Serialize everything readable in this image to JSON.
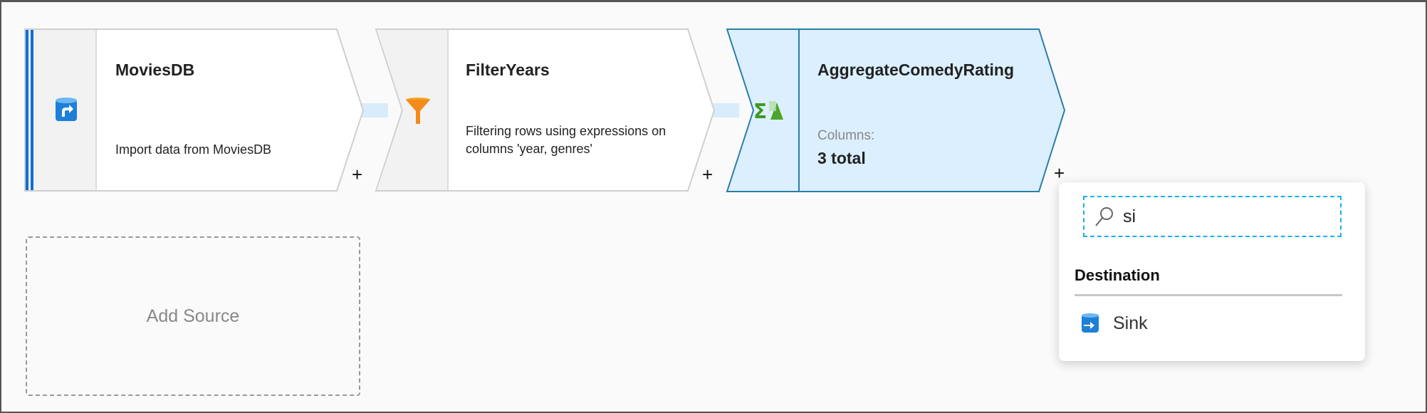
{
  "nodes": [
    {
      "title": "MoviesDB",
      "description": "Import data from MoviesDB",
      "icon": "source-database-icon"
    },
    {
      "title": "FilterYears",
      "description": "Filtering rows using expressions on columns 'year, genres'",
      "icon": "filter-funnel-icon"
    },
    {
      "title": "AggregateComedyRating",
      "columns_label": "Columns:",
      "columns_value": "3 total",
      "icon": "aggregate-icon",
      "selected": true
    }
  ],
  "add_plus": "+",
  "add_source": "Add Source",
  "popup": {
    "search_value": "si",
    "section": "Destination",
    "items": [
      {
        "label": "Sink",
        "icon": "sink-icon"
      }
    ]
  },
  "colors": {
    "selected_fill": "#dcefff",
    "selected_border": "#2a7ea8",
    "accent": "#0f6fd4"
  }
}
